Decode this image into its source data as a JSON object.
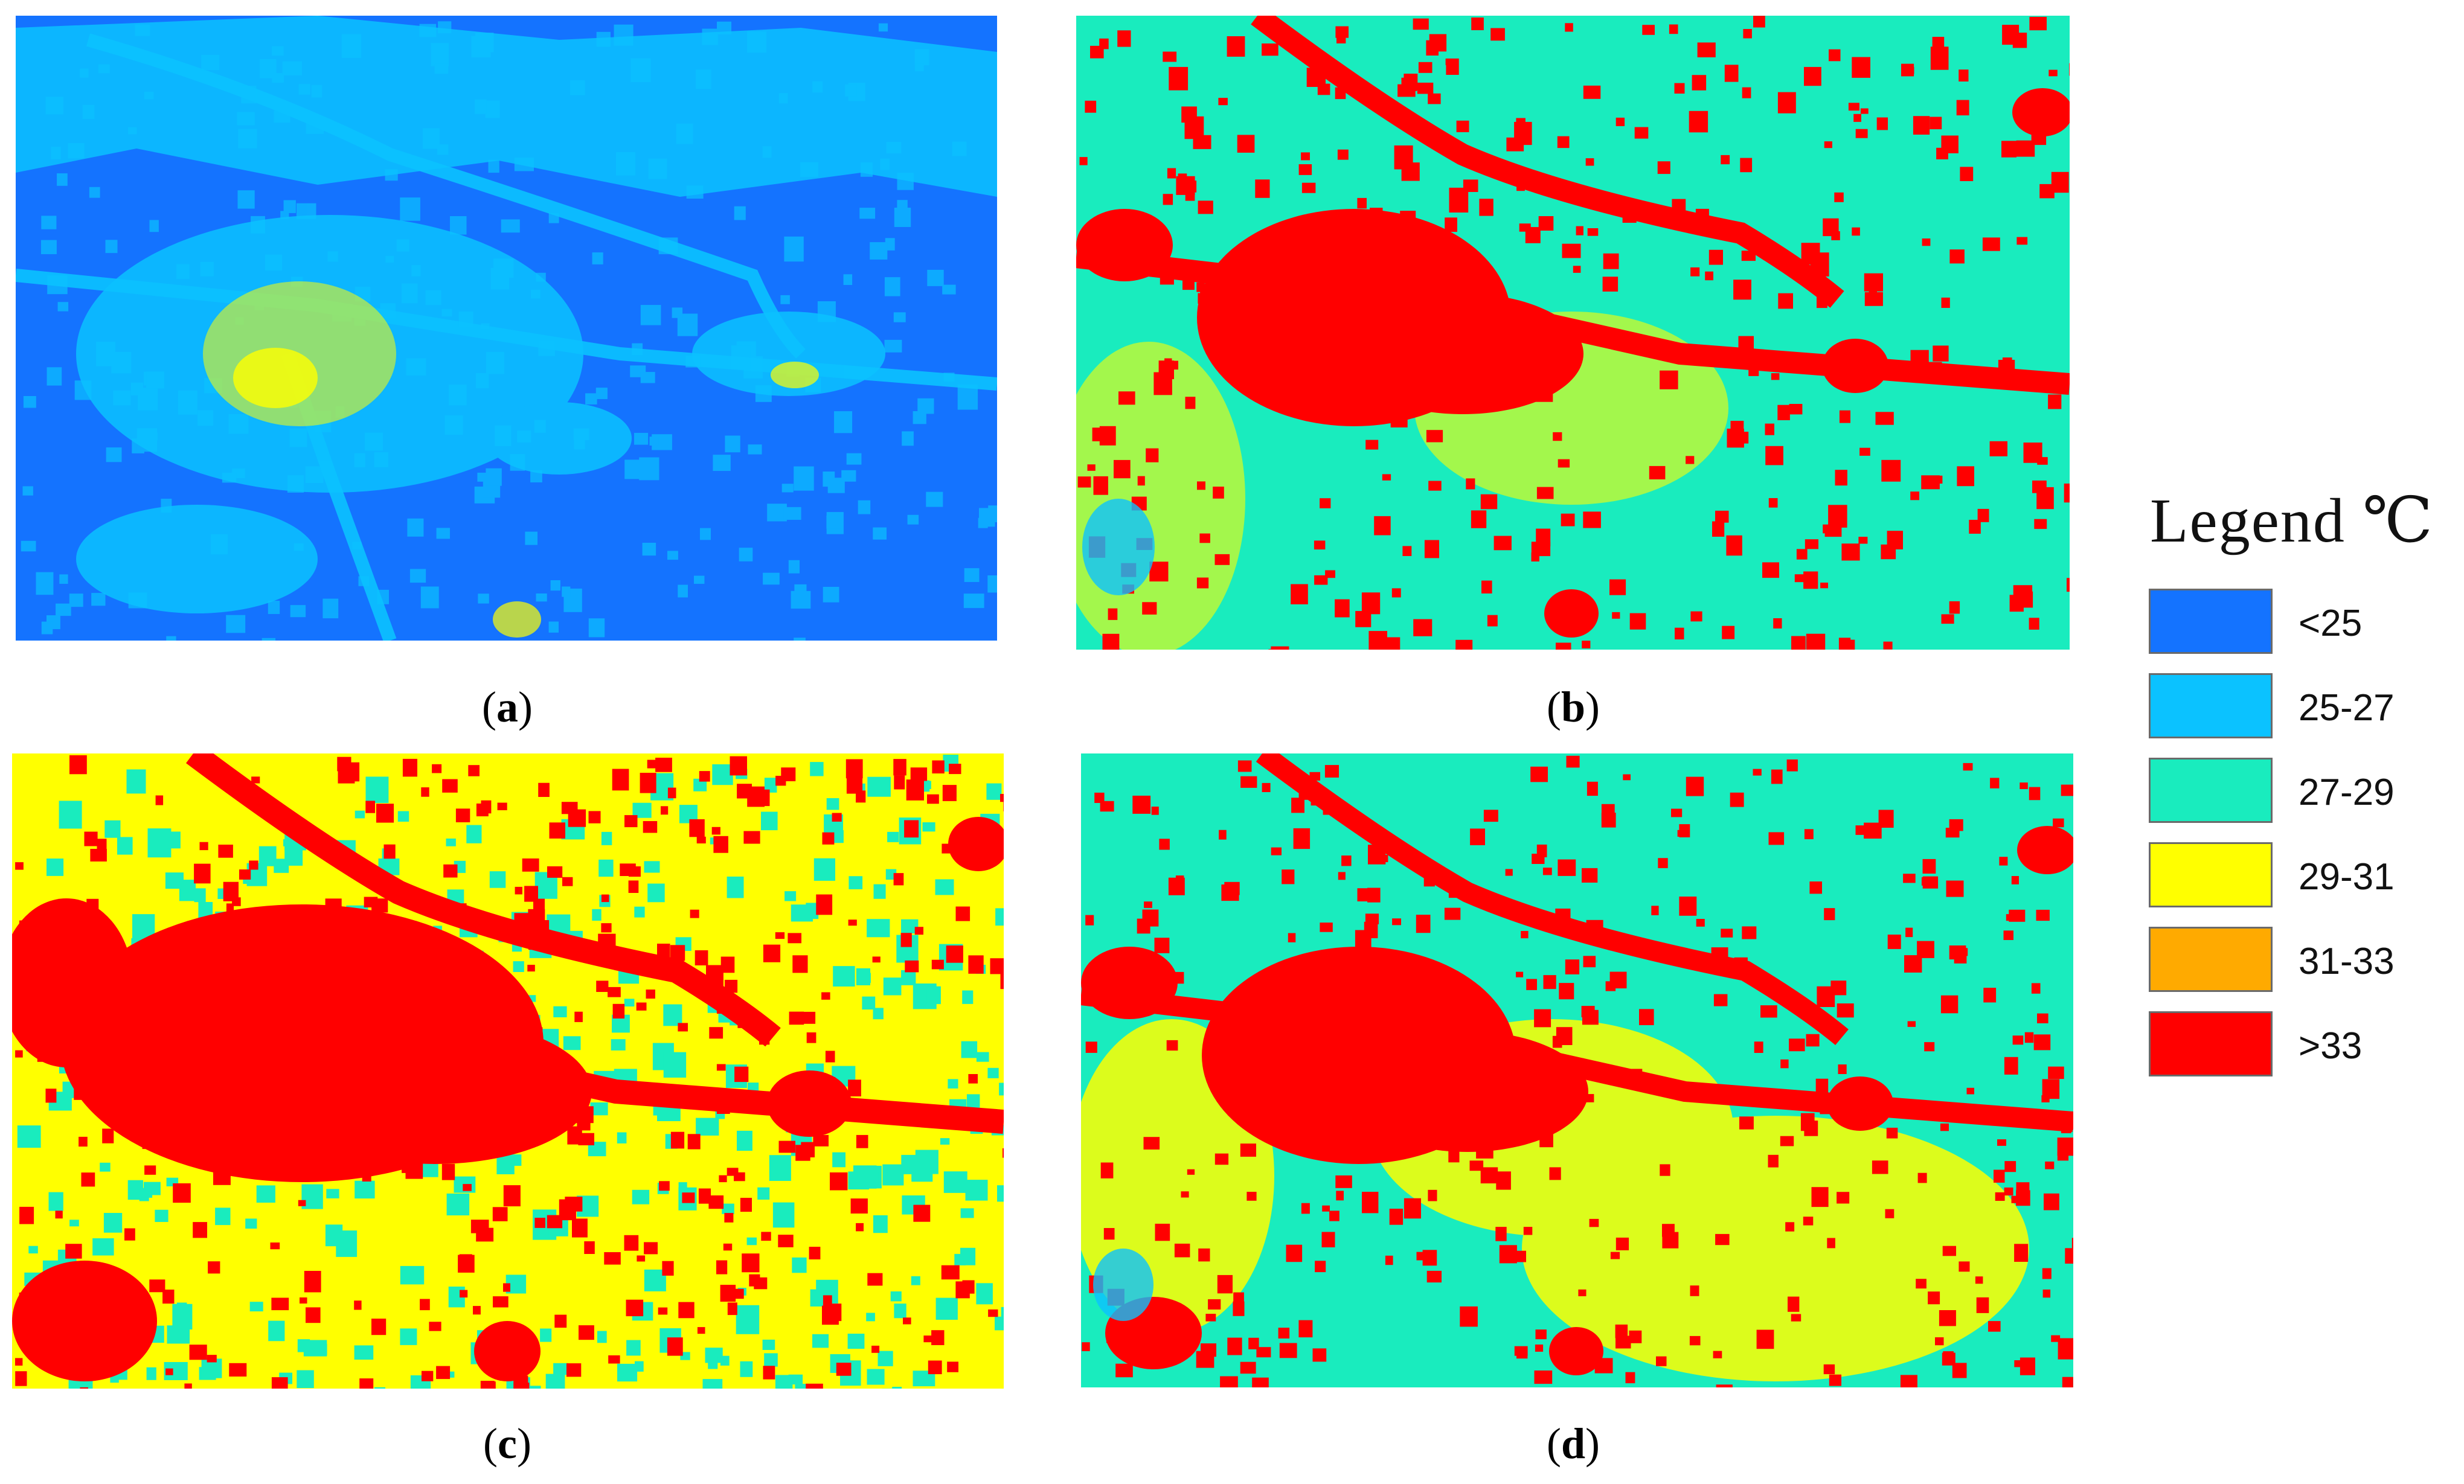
{
  "panels": [
    {
      "id": "a",
      "caption": "a",
      "base": "#1473ff"
    },
    {
      "id": "b",
      "caption": "b",
      "base": "#19ecbe"
    },
    {
      "id": "c",
      "caption": "c",
      "base": "#ffff00"
    },
    {
      "id": "d",
      "caption": "d",
      "base": "#19ecbe"
    }
  ],
  "legend": {
    "title": "Legend  ℃",
    "items": [
      {
        "label": "<25",
        "color": "#1473ff"
      },
      {
        "label": "25-27",
        "color": "#0bc2ff"
      },
      {
        "label": "27-29",
        "color": "#19ecbe"
      },
      {
        "label": "29-31",
        "color": "#ffff00"
      },
      {
        "label": "31-33",
        "color": "#ffaa00"
      },
      {
        "label": ">33",
        "color": "#ff0000"
      }
    ]
  }
}
